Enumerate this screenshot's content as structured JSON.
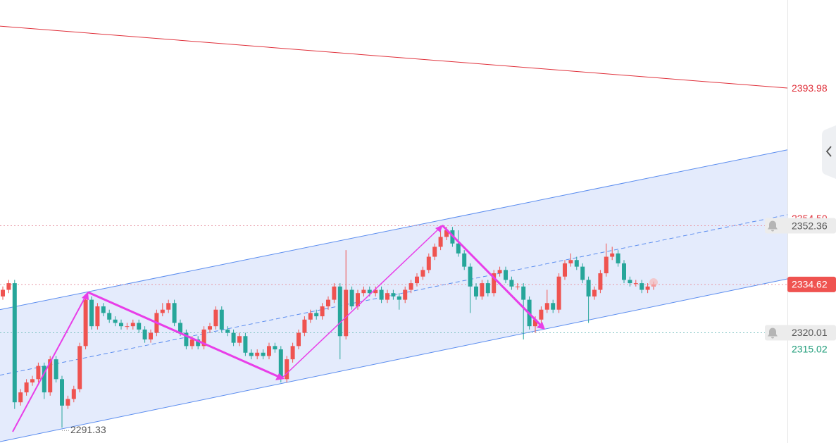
{
  "chart_data": {
    "type": "candlestick",
    "ylim": [
      2286.7,
      2420.6
    ],
    "up_color": "#ef5350",
    "down_color": "#26a69a",
    "open": [
      2331,
      2333,
      2335,
      2299,
      2302,
      2305,
      2306,
      2310,
      2302,
      2312,
      2306,
      2298,
      2300,
      2303,
      2316,
      2330,
      2322,
      2328,
      2326,
      2324,
      2323,
      2322,
      2322,
      2323,
      2321,
      2318,
      2320,
      2326,
      2327,
      2329,
      2323,
      2320,
      2316,
      2318,
      2316,
      2321,
      2322,
      2327,
      2321,
      2320,
      2317,
      2319,
      2314,
      2313,
      2314,
      2313,
      2316,
      2315,
      2306,
      2312,
      2316,
      2320,
      2324,
      2326,
      2325,
      2328,
      2330,
      2334,
      2319,
      2333,
      2328,
      2332,
      2333,
      2332,
      2333,
      2330,
      2332,
      2331,
      2330,
      2333,
      2335,
      2337,
      2339,
      2343,
      2346,
      2349,
      2351,
      2347,
      2344,
      2340,
      2334,
      2331,
      2335,
      2332,
      2338,
      2339,
      2336,
      2334,
      2334,
      2330,
      2322,
      2324,
      2327,
      2329,
      2327,
      2337,
      2341,
      2342,
      2340,
      2336,
      2331,
      2333,
      2338,
      2343,
      2344,
      2341,
      2336,
      2335,
      2335,
      2333,
      2334
    ],
    "high": [
      2334,
      2336,
      2336,
      2303,
      2306,
      2307,
      2311,
      2311,
      2313,
      2313,
      2307,
      2301,
      2304,
      2317,
      2331,
      2331,
      2329,
      2329,
      2327,
      2325,
      2324,
      2323,
      2324,
      2324,
      2322,
      2321,
      2327,
      2329,
      2330,
      2330,
      2324,
      2321,
      2319,
      2319,
      2322,
      2323,
      2328,
      2328,
      2322,
      2321,
      2320,
      2320,
      2315,
      2315,
      2315,
      2317,
      2317,
      2316,
      2313,
      2317,
      2321,
      2325,
      2327,
      2327,
      2329,
      2331,
      2335,
      2335,
      2345,
      2334,
      2333,
      2334,
      2334,
      2334,
      2334,
      2333,
      2333,
      2332,
      2334,
      2336,
      2338,
      2340,
      2344,
      2347,
      2351,
      2352,
      2352,
      2351,
      2345,
      2341,
      2335,
      2336,
      2336,
      2339,
      2340,
      2340,
      2337,
      2335,
      2335,
      2331,
      2325,
      2328,
      2333,
      2330,
      2338,
      2342,
      2344,
      2343,
      2341,
      2337,
      2334,
      2339,
      2347,
      2346,
      2345,
      2342,
      2337,
      2336,
      2336,
      2335,
      2335.5
    ],
    "low": [
      2330,
      2332,
      2297,
      2298,
      2301,
      2304,
      2305,
      2300,
      2301,
      2305,
      2291.33,
      2297,
      2299,
      2302,
      2315,
      2321,
      2321,
      2325,
      2323,
      2322,
      2321,
      2321,
      2321,
      2320,
      2317,
      2317,
      2319,
      2325,
      2326,
      2322,
      2319,
      2315,
      2315,
      2315,
      2315,
      2320,
      2321,
      2320,
      2319,
      2316,
      2316,
      2313,
      2312,
      2312,
      2312,
      2312,
      2314,
      2305,
      2305,
      2311,
      2315,
      2319,
      2323,
      2324,
      2324,
      2327,
      2329,
      2312,
      2318,
      2327,
      2327,
      2331,
      2331,
      2331,
      2329,
      2329,
      2330,
      2327,
      2329,
      2332,
      2334,
      2336,
      2338,
      2342,
      2345,
      2348,
      2346,
      2343,
      2339,
      2326,
      2330,
      2330,
      2331,
      2331,
      2337,
      2335,
      2333,
      2333,
      2318,
      2321,
      2320,
      2323,
      2326,
      2326,
      2326,
      2336,
      2340,
      2339,
      2335,
      2323,
      2330,
      2332,
      2337,
      2342,
      2340,
      2335,
      2334,
      2334,
      2332,
      2332,
      2333
    ],
    "close": [
      2333,
      2335,
      2299,
      2302,
      2305,
      2306,
      2310,
      2302,
      2312,
      2306,
      2298,
      2300,
      2303,
      2316,
      2330,
      2322,
      2328,
      2326,
      2324,
      2323,
      2322,
      2322,
      2323,
      2321,
      2318,
      2320,
      2326,
      2327,
      2329,
      2323,
      2320,
      2316,
      2318,
      2316,
      2321,
      2322,
      2327,
      2321,
      2320,
      2317,
      2319,
      2314,
      2313,
      2314,
      2313,
      2316,
      2315,
      2306,
      2312,
      2316,
      2320,
      2324,
      2326,
      2325,
      2328,
      2330,
      2334,
      2319,
      2333,
      2328,
      2332,
      2333,
      2332,
      2333,
      2330,
      2332,
      2331,
      2330,
      2333,
      2335,
      2337,
      2339,
      2343,
      2346,
      2349,
      2351,
      2347,
      2344,
      2340,
      2334,
      2331,
      2335,
      2332,
      2338,
      2339,
      2336,
      2334,
      2334,
      2330,
      2322,
      2324,
      2327,
      2329,
      2327,
      2337,
      2341,
      2342,
      2340,
      2336,
      2331,
      2333,
      2338,
      2343,
      2344,
      2341,
      2336,
      2335,
      2335,
      2333,
      2334,
      2334.62
    ],
    "trend_line": {
      "color": "#e0303a",
      "start": 2412.7
    },
    "channel": {
      "color": "#5b8def",
      "fill": "#dfe7fb",
      "upper": [
        2327,
        2375.3
      ],
      "lower": [
        2287.1,
        2336.3
      ],
      "mid": [
        2307.2,
        2355.7
      ]
    },
    "axis_labels": [
      {
        "value": 2393.98,
        "color": "#e0303a"
      },
      {
        "value": {
          "value": 2354.5,
          "label": "2354.50"
        },
        "color": "#e0303a"
      },
      {
        "value": 2352.36,
        "color": "#555555",
        "box": "#ececec",
        "line": "#e89aa6"
      },
      {
        "value": 2334.62,
        "color": "#ffffff",
        "box": "#ef5350",
        "line": "#e89aa6"
      },
      {
        "value": 2320.01,
        "color": "#555555",
        "box": "#ececec",
        "line": "#7fc4c4"
      },
      {
        "value": 2315.02,
        "color": "#1f9d7a"
      }
    ]
  }
}
